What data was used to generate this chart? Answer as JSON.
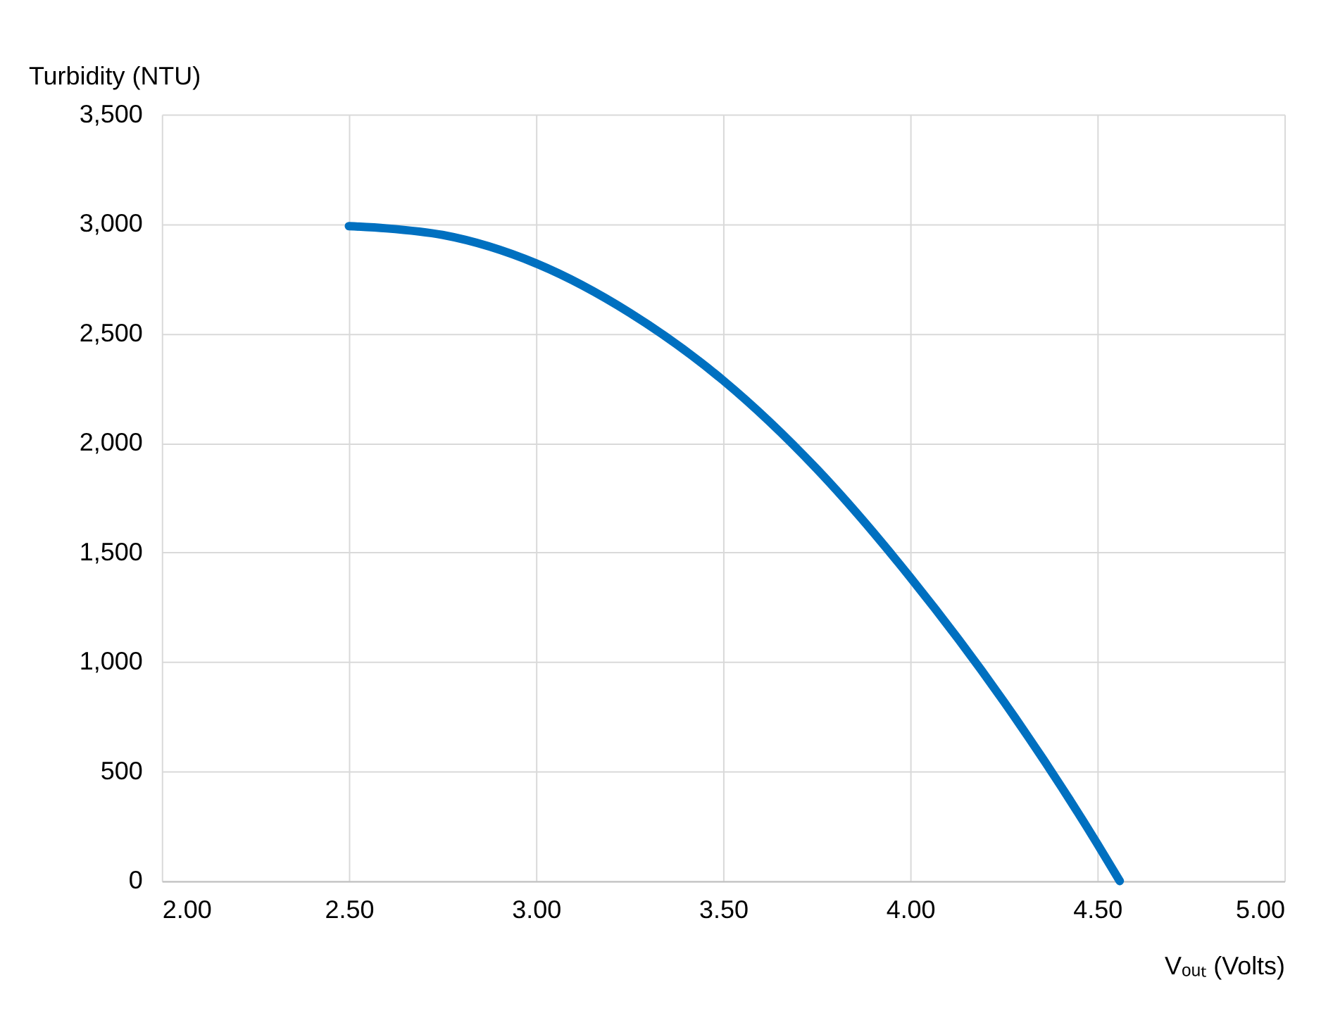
{
  "chart_data": {
    "type": "line",
    "xlabel": "Vₒᵤₜ (Volts)",
    "ylabel": "Turbidity (NTU)",
    "x": [
      2.5,
      2.6,
      2.75,
      3.0,
      3.25,
      3.5,
      3.75,
      4.0,
      4.25,
      4.5,
      4.56
    ],
    "series": [
      {
        "color": "#0070c0",
        "values": [
          2990,
          2980,
          2950,
          2820,
          2595,
          2286,
          1882,
          1387,
          820,
          170,
          0
        ]
      }
    ],
    "xlim": [
      2.0,
      5.0
    ],
    "xticks": [
      {
        "value": 2.0,
        "label": "2.00"
      },
      {
        "value": 2.5,
        "label": "2.50"
      },
      {
        "value": 3.0,
        "label": "3.00"
      },
      {
        "value": 3.5,
        "label": "3.50"
      },
      {
        "value": 4.0,
        "label": "4.00"
      },
      {
        "value": 4.5,
        "label": "4.50"
      },
      {
        "value": 5.0,
        "label": "5.00"
      }
    ],
    "ylim": [
      0,
      3500
    ],
    "yticks": [
      0,
      500,
      {
        "value": 1000,
        "label": "1,000"
      },
      {
        "value": 1500,
        "label": "1,500"
      },
      {
        "value": 2000,
        "label": "2,000"
      },
      {
        "value": 2500,
        "label": "2,500"
      },
      {
        "value": 3000,
        "label": "3,000"
      },
      {
        "value": 3500,
        "label": "3,500"
      }
    ],
    "grid": true,
    "marker": "none",
    "line_style": "solid"
  }
}
